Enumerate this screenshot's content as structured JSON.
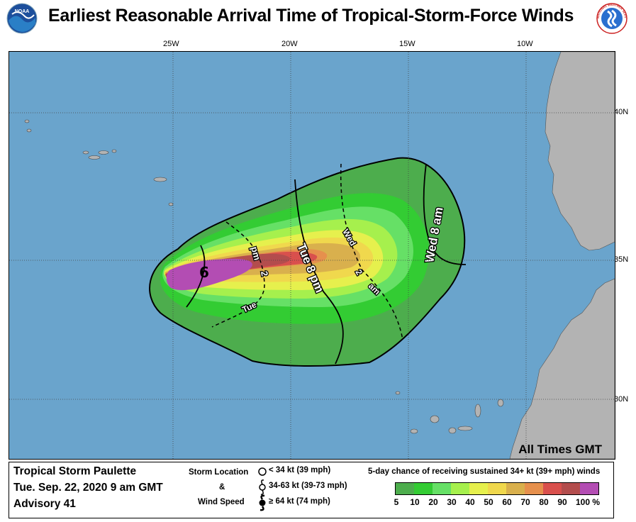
{
  "title": "Earliest Reasonable Arrival Time of Tropical-Storm-Force Winds",
  "logos": {
    "left": "noaa-logo",
    "right": "national-weather-service-logo"
  },
  "logo_text": {
    "noaa": "NOAA",
    "nws": "NATIONAL WEATHER SERVICE"
  },
  "map": {
    "longitude_labels": [
      "25W",
      "20W",
      "15W",
      "10W"
    ],
    "latitude_labels": [
      "40N",
      "35N",
      "30N"
    ],
    "arrival_labels": [
      "pm",
      "2",
      "Tue",
      "Tue 8 pm",
      "Wed",
      "2",
      "am",
      "Wed 8 am"
    ],
    "storm_symbol": "6",
    "times_note": "All Times GMT",
    "colors": {
      "ocean": "#6aa4cc",
      "land": "#b3b3b3",
      "outline": "#000000"
    }
  },
  "legend": {
    "storm_name": "Tropical Storm Paulette",
    "datetime": "Tue. Sep. 22, 2020  9 am GMT",
    "advisory": "Advisory 41",
    "storm_location_label": "Storm Location",
    "amp": "&",
    "wind_speed_label": "Wind Speed",
    "symbols": [
      {
        "icon": "open-circle-icon",
        "text": "< 34 kt (39 mph)"
      },
      {
        "icon": "tropical-storm-icon",
        "text": "34-63 kt (39-73 mph)"
      },
      {
        "icon": "hurricane-icon",
        "text": "≥ 64 kt (74 mph)"
      }
    ],
    "scale_title": "5-day chance of receiving sustained 34+ kt (39+ mph) winds",
    "scale_labels": [
      "5",
      "10",
      "20",
      "30",
      "40",
      "50",
      "60",
      "70",
      "80",
      "90",
      "100 %"
    ],
    "scale_colors": [
      "#4dad4d",
      "#33cc33",
      "#66e066",
      "#a6f04d",
      "#e6f04d",
      "#f0d84d",
      "#d9b04d",
      "#e6904d",
      "#d9504d",
      "#b34d4d",
      "#b34db3"
    ]
  }
}
